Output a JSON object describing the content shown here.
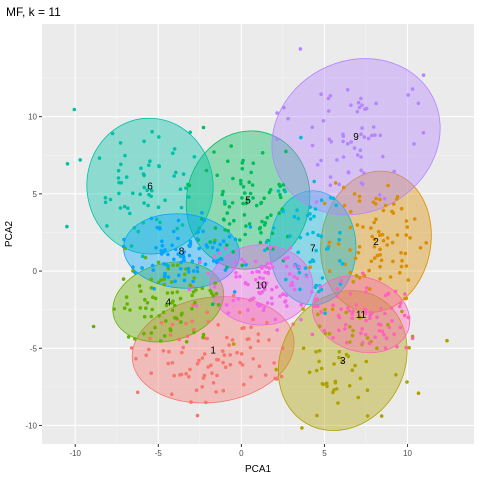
{
  "chart_data": {
    "type": "scatter",
    "title": "MF, k = 11",
    "xlabel": "PCA1",
    "ylabel": "PCA2",
    "xlim": [
      -12,
      14
    ],
    "ylim": [
      -11.2,
      16
    ],
    "x_ticks": [
      -10,
      -5,
      0,
      5,
      10
    ],
    "y_ticks": [
      -10,
      -5,
      0,
      5,
      10
    ],
    "grid": true,
    "legend": "none",
    "clusters": [
      {
        "label": "1",
        "color": "#F8766D",
        "center": [
          -1.7,
          -5.1
        ],
        "radii": [
          4.9,
          3.4
        ],
        "angle": 8,
        "n": 95
      },
      {
        "label": "2",
        "color": "#DB8E00",
        "center": [
          8.1,
          1.9
        ],
        "radii": [
          3.3,
          4.6
        ],
        "angle": -10,
        "n": 80
      },
      {
        "label": "3",
        "color": "#AEA200",
        "center": [
          6.1,
          -5.8
        ],
        "radii": [
          3.7,
          4.7
        ],
        "angle": -30,
        "n": 65
      },
      {
        "label": "4",
        "color": "#64B200",
        "center": [
          -4.4,
          -2.0
        ],
        "radii": [
          3.4,
          2.5
        ],
        "angle": 15,
        "n": 80
      },
      {
        "label": "5",
        "color": "#00BD5C",
        "center": [
          0.4,
          4.6
        ],
        "radii": [
          3.7,
          4.5
        ],
        "angle": -12,
        "n": 85
      },
      {
        "label": "6",
        "color": "#00C1A7",
        "center": [
          -5.5,
          5.5
        ],
        "radii": [
          3.8,
          4.4
        ],
        "angle": 5,
        "n": 70
      },
      {
        "label": "7",
        "color": "#00BADE",
        "center": [
          4.3,
          1.5
        ],
        "radii": [
          2.6,
          3.7
        ],
        "angle": 0,
        "n": 55
      },
      {
        "label": "8",
        "color": "#00A6FF",
        "center": [
          -3.6,
          1.3
        ],
        "radii": [
          3.5,
          2.4
        ],
        "angle": -5,
        "n": 80
      },
      {
        "label": "9",
        "color": "#B385FF",
        "center": [
          6.9,
          8.7
        ],
        "radii": [
          5.2,
          4.9
        ],
        "angle": 28,
        "n": 65
      },
      {
        "label": "10",
        "color": "#EF67EB",
        "center": [
          1.2,
          -0.9
        ],
        "radii": [
          3.1,
          2.6
        ],
        "angle": 0,
        "n": 90
      },
      {
        "label": "11",
        "color": "#FF63B6",
        "center": [
          7.2,
          -2.8
        ],
        "radii": [
          3.0,
          2.4
        ],
        "angle": -18,
        "n": 70
      }
    ]
  }
}
